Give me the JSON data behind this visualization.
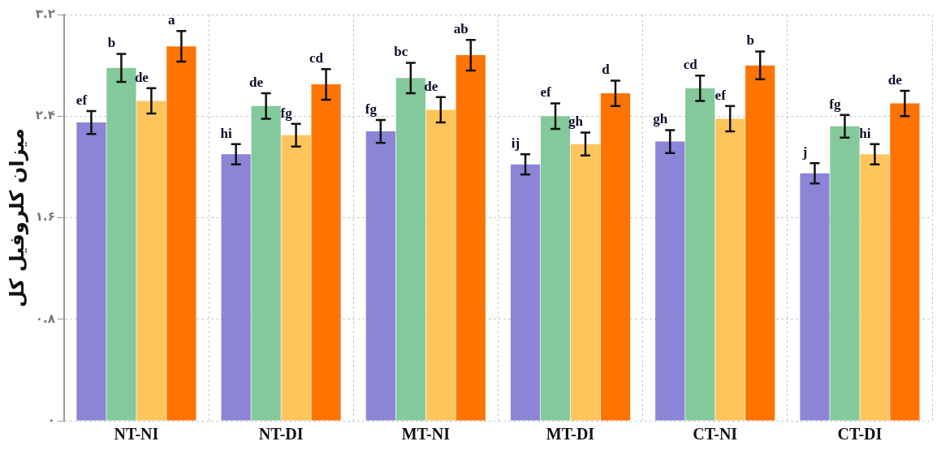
{
  "chart_data": {
    "type": "bar",
    "ylabel": "میزان کلروفیل کل",
    "categories": [
      "NT-NI",
      "NT-DI",
      "MT-NI",
      "MT-DI",
      "CT-NI",
      "CT-DI"
    ],
    "series": [
      {
        "color": "#8b84d7",
        "values": [
          2.35,
          2.1,
          2.28,
          2.02,
          2.2,
          1.95
        ],
        "errors": [
          0.09,
          0.08,
          0.09,
          0.08,
          0.09,
          0.08
        ],
        "value_labels": [
          "ef",
          "hi",
          "fg",
          "ij",
          "gh",
          "j"
        ]
      },
      {
        "color": "#84c99b",
        "values": [
          2.78,
          2.48,
          2.7,
          2.4,
          2.62,
          2.32
        ],
        "errors": [
          0.11,
          0.1,
          0.12,
          0.1,
          0.1,
          0.09
        ],
        "value_labels": [
          "b",
          "de",
          "bc",
          "ef",
          "cd",
          "fg"
        ]
      },
      {
        "color": "#ffc55c",
        "values": [
          2.52,
          2.25,
          2.45,
          2.18,
          2.38,
          2.1
        ],
        "errors": [
          0.1,
          0.09,
          0.1,
          0.09,
          0.1,
          0.08
        ],
        "value_labels": [
          "de",
          "fg",
          "de",
          "gh",
          "ef",
          "hi"
        ]
      },
      {
        "color": "#ff7300",
        "values": [
          2.95,
          2.65,
          2.88,
          2.58,
          2.8,
          2.5
        ],
        "errors": [
          0.12,
          0.12,
          0.12,
          0.1,
          0.11,
          0.1
        ],
        "value_labels": [
          "a",
          "cd",
          "ab",
          "d",
          "b",
          "de"
        ]
      }
    ],
    "ylim": [
      0,
      3.2
    ],
    "yticks": [
      {
        "value": 0,
        "label": "۰"
      },
      {
        "value": 0.8,
        "label": "۰.۸"
      },
      {
        "value": 1.6,
        "label": "۱.۶"
      },
      {
        "value": 2.4,
        "label": "۲.۴"
      },
      {
        "value": 3.2,
        "label": "۳.۲"
      }
    ],
    "grid": true,
    "legend": false
  }
}
